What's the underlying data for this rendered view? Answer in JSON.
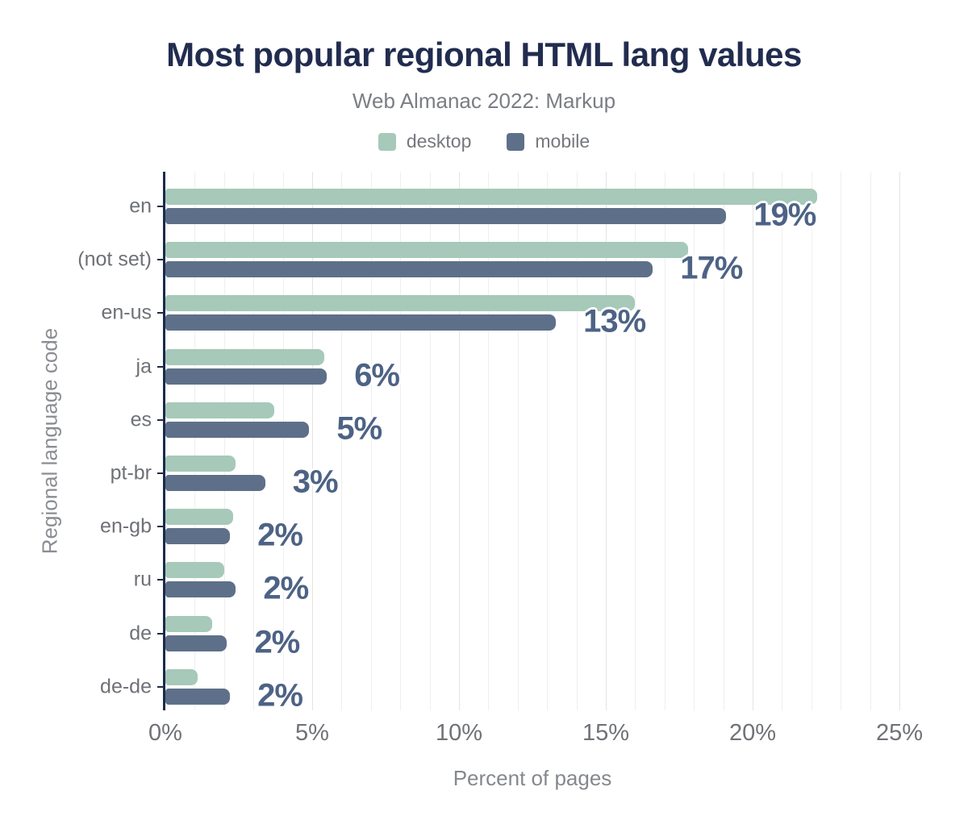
{
  "header": {
    "title": "Most popular regional HTML lang values",
    "subtitle": "Web Almanac 2022: Markup"
  },
  "colors": {
    "title_navy": "#212c4f",
    "axis_navy": "#1b2b4b",
    "desktop_green": "#a6c9b9",
    "mobile_slate": "#5e7089",
    "data_label_slate": "#4d6385",
    "grid_minor": "#efefef",
    "grid_major": "#e4e4e6",
    "text_gray": "#6e7176"
  },
  "chart_data": {
    "type": "bar",
    "orientation": "horizontal",
    "title": "Most popular regional HTML lang values",
    "subtitle": "Web Almanac 2022: Markup",
    "xlabel": "Percent of pages",
    "ylabel": "Regional language code",
    "xlim": [
      0,
      25
    ],
    "x_tick_values": [
      0,
      5,
      10,
      15,
      20,
      25
    ],
    "x_tick_labels": [
      "0%",
      "5%",
      "10%",
      "15%",
      "20%",
      "25%"
    ],
    "grid": "vertical, minor every 1%, major every 5%",
    "legend_position": "top-center",
    "categories": [
      "en",
      "(not set)",
      "en-us",
      "ja",
      "es",
      "pt-br",
      "en-gb",
      "ru",
      "de",
      "de-de"
    ],
    "series": [
      {
        "name": "desktop",
        "color": "#a6c9b9",
        "values": [
          22.2,
          17.8,
          16.0,
          5.4,
          3.7,
          2.4,
          2.3,
          2.0,
          1.6,
          1.1
        ]
      },
      {
        "name": "mobile",
        "color": "#5e7089",
        "values": [
          19.1,
          16.6,
          13.3,
          5.5,
          4.9,
          3.4,
          2.2,
          2.4,
          2.1,
          2.2
        ]
      }
    ],
    "bar_labels": [
      "19%",
      "17%",
      "13%",
      "6%",
      "5%",
      "3%",
      "2%",
      "2%",
      "2%",
      "2%"
    ],
    "bar_labels_series": "mobile"
  }
}
